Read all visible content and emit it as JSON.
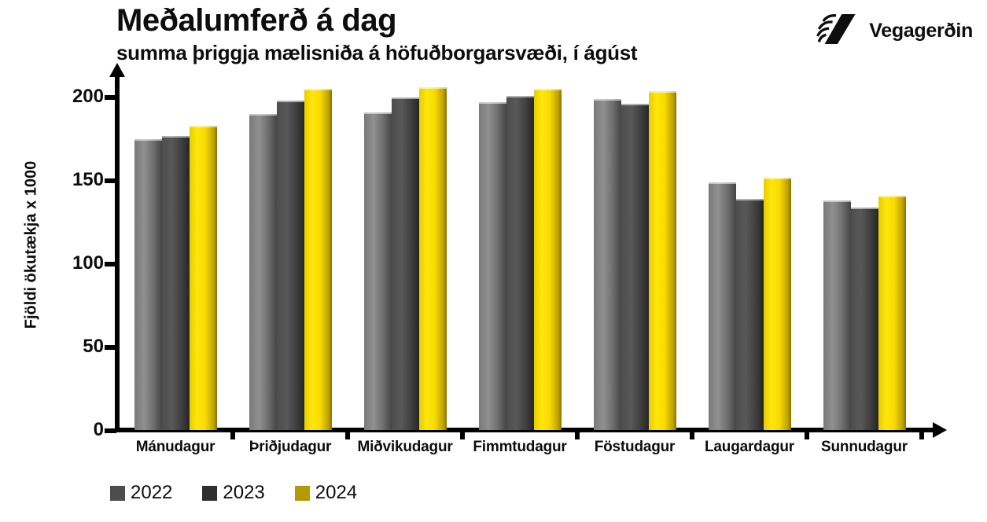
{
  "header": {
    "title": "Meðalumferð á dag",
    "subtitle": "summa þriggja mælisniða á höfuðborgarsvæði, í ágúst",
    "logo_text": "Vegagerðin"
  },
  "chart_data": {
    "type": "bar",
    "title": "Meðalumferð á dag",
    "subtitle": "summa þriggja mælisniða á höfuðborgarsvæði, í ágúst",
    "xlabel": "",
    "ylabel": "Fjöldi ökutækja x 1000",
    "ylim": [
      0,
      215
    ],
    "yticks": [
      0,
      50,
      100,
      150,
      200
    ],
    "grid": false,
    "legend_position": "bottom-left",
    "categories": [
      "Mánudagur",
      "Þriðjudagur",
      "Miðvikudagur",
      "Fimmtudagur",
      "Föstudagur",
      "Laugardagur",
      "Sunnudagur"
    ],
    "series": [
      {
        "name": "2022",
        "color": "#4d4d4d",
        "values": [
          175,
          190,
          191,
          197,
          199,
          149,
          138
        ]
      },
      {
        "name": "2023",
        "color": "#2f2f2f",
        "values": [
          177,
          198,
          200,
          201,
          196,
          139,
          134
        ]
      },
      {
        "name": "2024",
        "color": "#b29a00",
        "values": [
          183,
          205,
          206,
          205,
          204,
          152,
          141
        ]
      }
    ]
  },
  "colors": {
    "axis": "#000000",
    "text": "#0d0d0d",
    "bar_2022_mid": "#8f8f8f",
    "bar_2023_mid": "#555555",
    "bar_2024_mid": "#ffe60a"
  }
}
